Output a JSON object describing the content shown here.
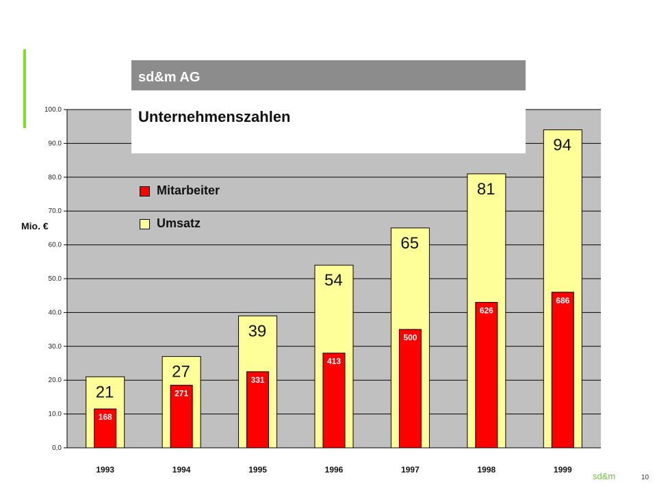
{
  "slide": {
    "header": "sd&m AG",
    "title": "Unternehmenszahlen",
    "y_unit": "Mio. €",
    "brand": "sd&m",
    "page_number": "10",
    "accent_color": "#80e020"
  },
  "legend": [
    {
      "label": "Mitarbeiter",
      "color": "#ff0000"
    },
    {
      "label": "Umsatz",
      "color": "#ffff99"
    }
  ],
  "chart_data": {
    "type": "bar",
    "categories": [
      "1993",
      "1994",
      "1995",
      "1996",
      "1997",
      "1998",
      "1999"
    ],
    "series": [
      {
        "name": "Umsatz",
        "values": [
          21,
          27,
          39,
          54,
          65,
          81,
          94
        ],
        "labels": [
          "21",
          "27",
          "39",
          "54",
          "65",
          "81",
          "94"
        ],
        "color": "#ffff99"
      },
      {
        "name": "Mitarbeiter",
        "values": [
          168,
          271,
          331,
          413,
          500,
          626,
          686
        ],
        "labels": [
          "168",
          "271",
          "331",
          "413",
          "500",
          "626",
          "686"
        ],
        "color": "#ff0000",
        "scaled_height_in_axis_units": [
          11.5,
          18.5,
          22.5,
          28.0,
          35.0,
          43.0,
          46.0
        ]
      }
    ],
    "title": "Unternehmenszahlen",
    "ylabel": "Mio. €",
    "ylim": [
      0,
      100
    ],
    "yticks": [
      "0,0",
      "10.0",
      "20.0",
      "30.0",
      "40.0",
      "50.0",
      "60.0",
      "70.0",
      "80.0",
      "90.0",
      "100.0"
    ],
    "grid": true,
    "plot_background": "#c0c0c0"
  }
}
